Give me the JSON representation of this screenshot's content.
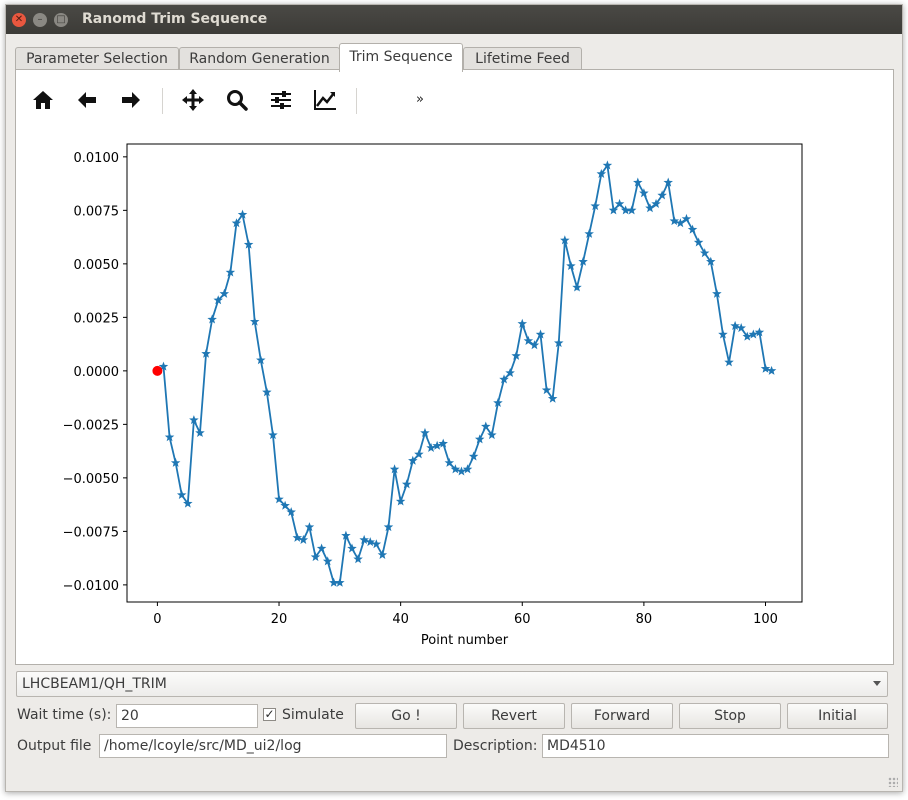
{
  "window": {
    "title": "Ranomd Trim Sequence"
  },
  "tabs": [
    {
      "label": "Parameter Selection"
    },
    {
      "label": "Random Generation"
    },
    {
      "label": "Trim Sequence",
      "active": true
    },
    {
      "label": "Lifetime Feed"
    }
  ],
  "toolbar": {
    "icons": [
      "home-icon",
      "back-arrow-icon",
      "forward-arrow-icon",
      "pan-icon",
      "zoom-icon",
      "subplots-config-icon",
      "axis-edit-icon"
    ],
    "overflow": "»"
  },
  "chart_data": {
    "type": "line",
    "xlabel": "Point number",
    "ylabel": "",
    "xlim": [
      -5,
      106
    ],
    "ylim": [
      -0.0108,
      0.0106
    ],
    "xticks": [
      0,
      20,
      40,
      60,
      80,
      100
    ],
    "yticks": [
      -0.01,
      -0.0075,
      -0.005,
      -0.0025,
      0.0,
      0.0025,
      0.005,
      0.0075,
      0.01
    ],
    "ytick_labels": [
      "−0.0100",
      "−0.0075",
      "−0.0050",
      "−0.0025",
      "0.0000",
      "0.0025",
      "0.0050",
      "0.0075",
      "0.0100"
    ],
    "xtick_labels": [
      "0",
      "20",
      "40",
      "60",
      "80",
      "100"
    ],
    "series_color": "#1f77b4",
    "marker": "star",
    "highlight_color": "#ff0000",
    "highlight_point": [
      0,
      0.0
    ],
    "series": [
      {
        "values": [
          0.0002,
          -0.0031,
          -0.0043,
          -0.0058,
          -0.0062,
          -0.0023,
          -0.0029,
          0.0008,
          0.0024,
          0.0033,
          0.0036,
          0.0046,
          0.0069,
          0.0073,
          0.0059,
          0.0023,
          0.0005,
          -0.001,
          -0.003,
          -0.006,
          -0.0063,
          -0.0066,
          -0.0078,
          -0.0079,
          -0.0073,
          -0.0087,
          -0.0083,
          -0.0089,
          -0.0099,
          -0.0099,
          -0.0077,
          -0.0083,
          -0.0088,
          -0.0079,
          -0.008,
          -0.0081,
          -0.0086,
          -0.0073,
          -0.0046,
          -0.0061,
          -0.0053,
          -0.0042,
          -0.0039,
          -0.0029,
          -0.0036,
          -0.0035,
          -0.0034,
          -0.0043,
          -0.0046,
          -0.0047,
          -0.0046,
          -0.004,
          -0.0032,
          -0.0026,
          -0.003,
          -0.0015,
          -0.0004,
          -0.0001,
          0.0007,
          0.0022,
          0.0014,
          0.0012,
          0.0017,
          -0.0009,
          -0.0013,
          0.0013,
          0.0061,
          0.0049,
          0.0039,
          0.0051,
          0.0064,
          0.0077,
          0.0092,
          0.0096,
          0.0075,
          0.0078,
          0.0075,
          0.0075,
          0.0088,
          0.0083,
          0.0076,
          0.0078,
          0.0082,
          0.0088,
          0.007,
          0.0069,
          0.0071,
          0.0066,
          0.006,
          0.0055,
          0.0051,
          0.0036,
          0.0017,
          0.0004,
          0.0021,
          0.002,
          0.0016,
          0.0017,
          0.0018,
          0.0001,
          0.0
        ]
      }
    ]
  },
  "controls": {
    "parameter_combo": "LHCBEAM1/QH_TRIM",
    "wait_label": "Wait time (s):",
    "wait_value": "20",
    "simulate_label": "Simulate",
    "simulate_checked": "✓",
    "buttons": {
      "go": "Go !",
      "revert": "Revert",
      "forward": "Forward",
      "stop": "Stop",
      "initial": "Initial"
    },
    "output_label": "Output file",
    "output_value": "/home/lcoyle/src/MD_ui2/log",
    "description_label": "Description:",
    "description_value": "MD4510"
  }
}
